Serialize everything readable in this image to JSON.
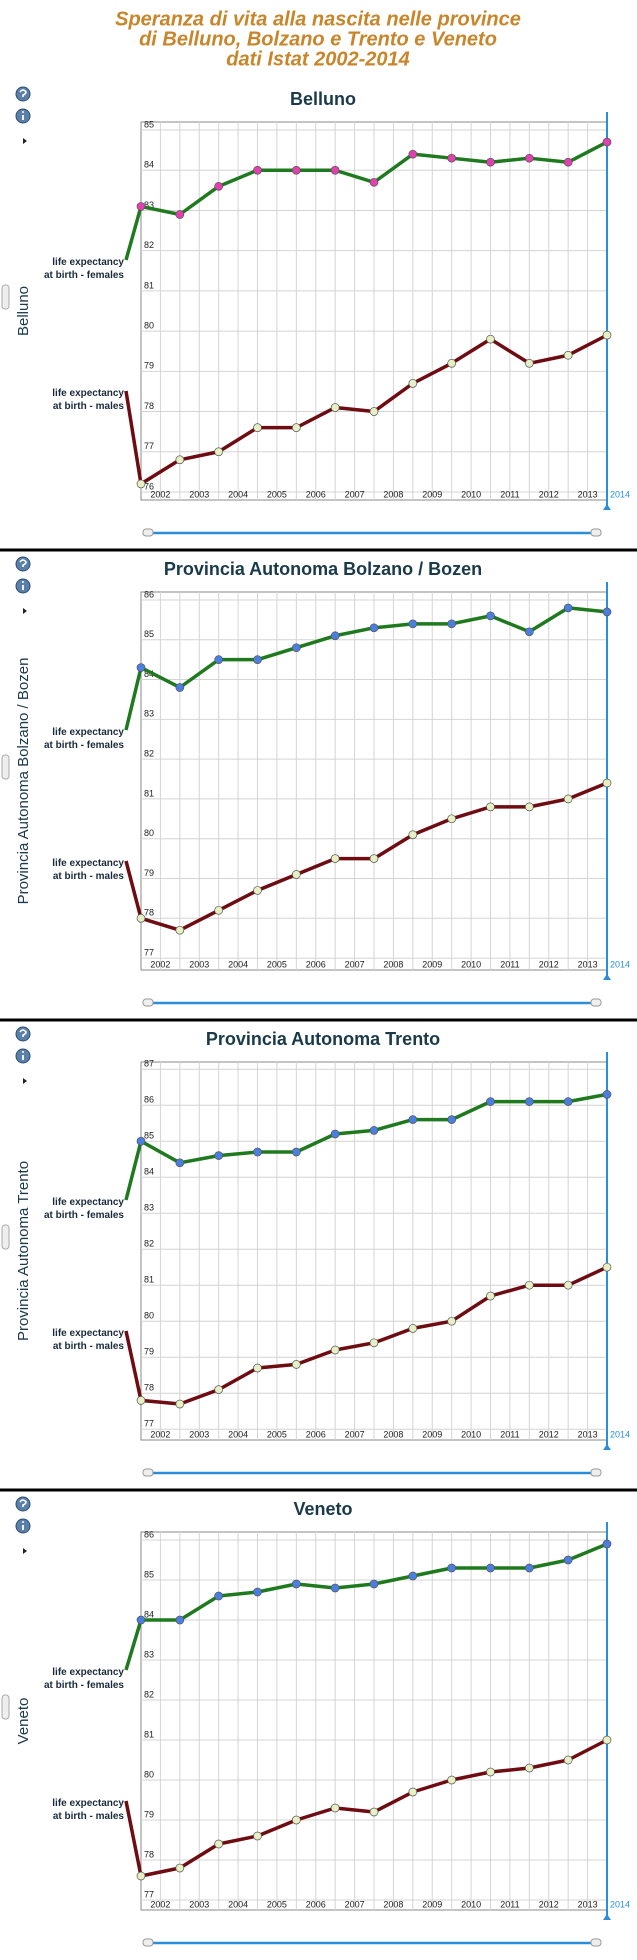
{
  "title": [
    "Speranza di vita alla nascita nelle province",
    "di Belluno, Bolzano e Trento e Veneto",
    "dati Istat 2002-2014"
  ],
  "chart_data": [
    {
      "type": "line",
      "title": "Belluno",
      "y_label": "Belluno",
      "categories": [
        "2002",
        "2003",
        "2004",
        "2005",
        "2006",
        "2007",
        "2008",
        "2009",
        "2010",
        "2011",
        "2012",
        "2013",
        "2014"
      ],
      "ylim": [
        75.8,
        85.2
      ],
      "yticks": [
        76,
        77,
        78,
        79,
        80,
        81,
        82,
        83,
        84,
        85
      ],
      "grid": true,
      "series": [
        {
          "name": "life expectancy at birth - females",
          "color": "#1f7a1f",
          "marker_color": "#e040b0",
          "values": [
            83.1,
            82.9,
            83.6,
            84.0,
            84.0,
            84.0,
            83.7,
            84.4,
            84.3,
            84.2,
            84.3,
            84.2,
            84.7
          ]
        },
        {
          "name": "life expectancy at birth - males",
          "color": "#6e0c12",
          "marker_color": "#e6f0c4",
          "values": [
            76.2,
            76.8,
            77.0,
            77.6,
            77.6,
            78.1,
            78.0,
            78.7,
            79.2,
            79.8,
            79.2,
            79.4,
            79.9
          ]
        }
      ]
    },
    {
      "type": "line",
      "title": "Provincia Autonoma Bolzano / Bozen",
      "y_label": "Provincia Autonoma Bolzano / Bozen",
      "categories": [
        "2002",
        "2003",
        "2004",
        "2005",
        "2006",
        "2007",
        "2008",
        "2009",
        "2010",
        "2011",
        "2012",
        "2013",
        "2014"
      ],
      "ylim": [
        76.7,
        86.2
      ],
      "yticks": [
        77,
        78,
        79,
        80,
        81,
        82,
        83,
        84,
        85,
        86
      ],
      "grid": true,
      "series": [
        {
          "name": "life expectancy at birth - females",
          "color": "#1f7a1f",
          "marker_color": "#4a7fe0",
          "values": [
            84.3,
            83.8,
            84.5,
            84.5,
            84.8,
            85.1,
            85.3,
            85.4,
            85.4,
            85.6,
            85.2,
            85.8,
            85.7
          ]
        },
        {
          "name": "life expectancy at birth - males",
          "color": "#6e0c12",
          "marker_color": "#e6f0c4",
          "values": [
            78.0,
            77.7,
            78.2,
            78.7,
            79.1,
            79.5,
            79.5,
            80.1,
            80.5,
            80.8,
            80.8,
            81.0,
            81.4
          ]
        }
      ]
    },
    {
      "type": "line",
      "title": "Provincia Autonoma Trento",
      "y_label": "Provincia Autonoma Trento",
      "categories": [
        "2002",
        "2003",
        "2004",
        "2005",
        "2006",
        "2007",
        "2008",
        "2009",
        "2010",
        "2011",
        "2012",
        "2013",
        "2014"
      ],
      "ylim": [
        76.7,
        87.2
      ],
      "yticks": [
        77,
        78,
        79,
        80,
        81,
        82,
        83,
        84,
        85,
        86,
        87
      ],
      "grid": true,
      "series": [
        {
          "name": "life expectancy at birth - females",
          "color": "#1f7a1f",
          "marker_color": "#4a7fe0",
          "values": [
            85.0,
            84.4,
            84.6,
            84.7,
            84.7,
            85.2,
            85.3,
            85.6,
            85.6,
            86.1,
            86.1,
            86.1,
            86.3
          ]
        },
        {
          "name": "life expectancy at birth - males",
          "color": "#6e0c12",
          "marker_color": "#e6f0c4",
          "values": [
            77.8,
            77.7,
            78.1,
            78.7,
            78.8,
            79.2,
            79.4,
            79.8,
            80.0,
            80.7,
            81.0,
            81.0,
            81.5
          ]
        }
      ]
    },
    {
      "type": "line",
      "title": "Veneto",
      "y_label": "Veneto",
      "categories": [
        "2002",
        "2003",
        "2004",
        "2005",
        "2006",
        "2007",
        "2008",
        "2009",
        "2010",
        "2011",
        "2012",
        "2013",
        "2014"
      ],
      "ylim": [
        76.75,
        86.2
      ],
      "yticks": [
        77,
        78,
        79,
        80,
        81,
        82,
        83,
        84,
        85,
        86
      ],
      "grid": true,
      "series": [
        {
          "name": "life expectancy at birth - females",
          "color": "#1f7a1f",
          "marker_color": "#4a7fe0",
          "values": [
            84.0,
            84.0,
            84.6,
            84.7,
            84.9,
            84.8,
            84.9,
            85.1,
            85.3,
            85.3,
            85.3,
            85.5,
            85.9
          ]
        },
        {
          "name": "life expectancy at birth - males",
          "color": "#6e0c12",
          "marker_color": "#e6f0c4",
          "values": [
            77.6,
            77.8,
            78.4,
            78.6,
            79.0,
            79.3,
            79.2,
            79.7,
            80.0,
            80.2,
            80.3,
            80.5,
            81.0
          ]
        }
      ]
    }
  ]
}
